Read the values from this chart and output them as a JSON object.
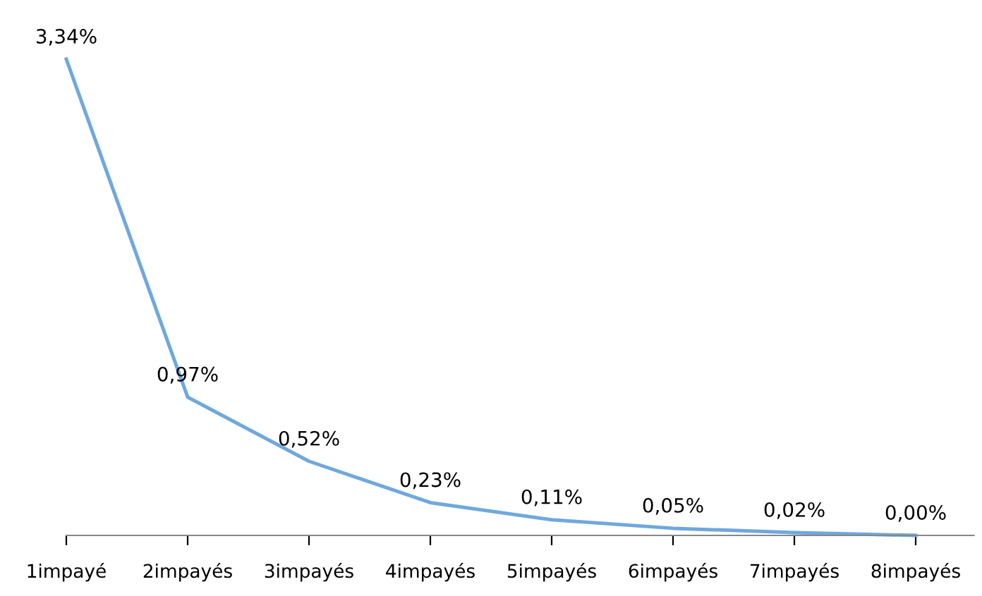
{
  "chart_data": {
    "type": "line",
    "categories": [
      "1impayé",
      "2impayés",
      "3impayés",
      "4impayés",
      "5impayés",
      "6impayés",
      "7impayés",
      "8impayés"
    ],
    "series": [
      {
        "color": "#6fa8dc",
        "values": [
          3.34,
          0.97,
          0.52,
          0.23,
          0.11,
          0.05,
          0.02,
          0.0
        ],
        "value_labels": [
          "3,34%",
          "0,97%",
          "0,52%",
          "0,23%",
          "0,11%",
          "0,05%",
          "0,02%",
          "0,00%"
        ]
      }
    ],
    "grid": false,
    "legend": false,
    "marker": "none",
    "line_style": "solid"
  }
}
